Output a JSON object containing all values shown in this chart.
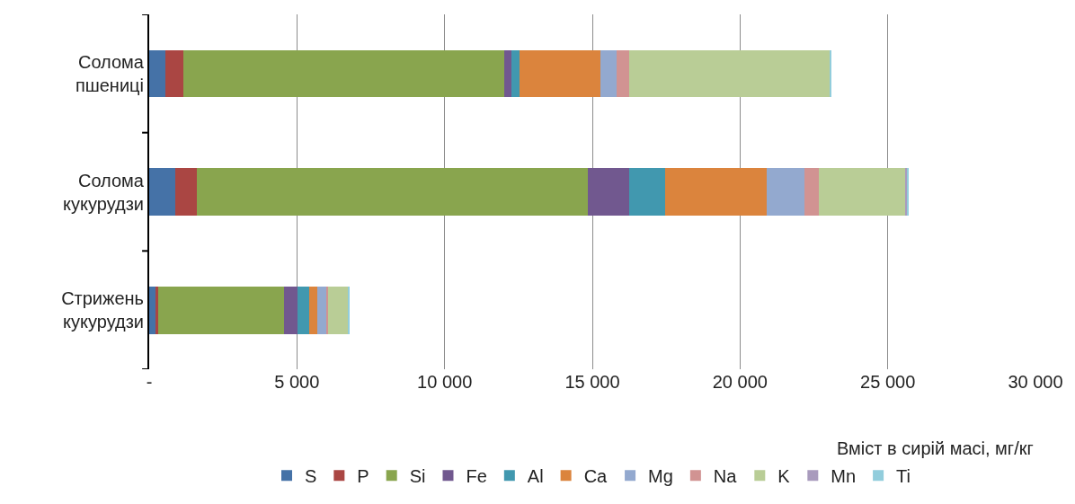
{
  "chart_data": {
    "type": "bar",
    "orientation": "horizontal",
    "stacked": true,
    "categories": [
      "Солома пшениці",
      "Солома кукурудзи",
      "Стрижень кукурудзи"
    ],
    "xlabel": "Вміст в сирій масі, мг/кг",
    "xlim": [
      0,
      30000
    ],
    "xticks": [
      {
        "value": 0,
        "label": "-"
      },
      {
        "value": 5000,
        "label": "5 000"
      },
      {
        "value": 10000,
        "label": "10 000"
      },
      {
        "value": 15000,
        "label": "15 000"
      },
      {
        "value": 20000,
        "label": "20 000"
      },
      {
        "value": 25000,
        "label": "25 000"
      },
      {
        "value": 30000,
        "label": "30 000"
      }
    ],
    "grid": "x",
    "legend": "bottom",
    "series": [
      {
        "name": "S",
        "color": "#4572a7",
        "values": [
          550,
          890,
          220
        ]
      },
      {
        "name": "P",
        "color": "#aa4643",
        "values": [
          620,
          715,
          90
        ]
      },
      {
        "name": "Si",
        "color": "#89a54e",
        "values": [
          10850,
          13240,
          4250
        ]
      },
      {
        "name": "Fe",
        "color": "#71588f",
        "values": [
          240,
          1415,
          460
        ]
      },
      {
        "name": "Al",
        "color": "#4198af",
        "values": [
          290,
          1190,
          400
        ]
      },
      {
        "name": "Ca",
        "color": "#db843d",
        "values": [
          2710,
          3450,
          280
        ]
      },
      {
        "name": "Mg",
        "color": "#93a9cf",
        "values": [
          570,
          1280,
          300
        ]
      },
      {
        "name": "Na",
        "color": "#d19392",
        "values": [
          430,
          475,
          40
        ]
      },
      {
        "name": "K",
        "color": "#b9cd96",
        "values": [
          6780,
          2955,
          700
        ]
      },
      {
        "name": "Mn",
        "color": "#a99bbd",
        "values": [
          10,
          50,
          5
        ]
      },
      {
        "name": "Ti",
        "color": "#92cddc",
        "values": [
          30,
          40,
          15
        ]
      }
    ]
  }
}
